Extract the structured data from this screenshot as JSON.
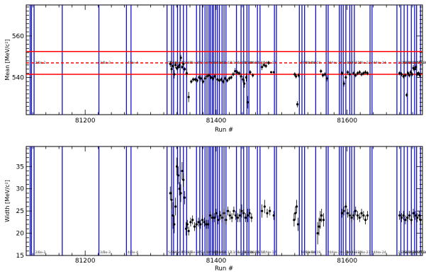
{
  "chart_data": [
    {
      "type": "scatter",
      "xlabel": "Run #",
      "ylabel_html": "Mean [MeV/c²]",
      "ylabel": "Mean [MeV/c2]",
      "xlim": [
        81110,
        81715
      ],
      "ylim": [
        522,
        575
      ],
      "xticks": [
        81200,
        81400,
        81600
      ],
      "yticks": [
        540,
        560
      ],
      "hlines_solid": [
        552.5,
        541.5
      ],
      "hline_dashed": 547.0,
      "hline_color": "#ff0000",
      "vline_color": "#1010c8",
      "point_color": "#000000",
      "errorbars": true,
      "points": [
        [
          81330,
          546.5,
          1.5
        ],
        [
          81332,
          544.0,
          2.0
        ],
        [
          81334,
          545.5,
          1.0
        ],
        [
          81336,
          541.5,
          2.0
        ],
        [
          81338,
          546.0,
          1.5
        ],
        [
          81340,
          544.5,
          1.0
        ],
        [
          81342,
          545.0,
          1.0
        ],
        [
          81344,
          546.0,
          1.5
        ],
        [
          81346,
          549.5,
          1.5
        ],
        [
          81348,
          545.0,
          1.0
        ],
        [
          81350,
          546.5,
          1.0
        ],
        [
          81352,
          544.0,
          1.0
        ],
        [
          81355,
          542.0,
          2.0
        ],
        [
          81358,
          530.5,
          2.5
        ],
        [
          81362,
          538.0,
          1.0
        ],
        [
          81365,
          539.0,
          1.0
        ],
        [
          81368,
          539.0,
          1.0
        ],
        [
          81371,
          538.5,
          1.0
        ],
        [
          81374,
          540.0,
          1.0
        ],
        [
          81377,
          539.5,
          1.5
        ],
        [
          81380,
          538.0,
          1.0
        ],
        [
          81383,
          539.5,
          1.0
        ],
        [
          81386,
          540.5,
          1.0
        ],
        [
          81389,
          541.0,
          1.0
        ],
        [
          81392,
          540.0,
          1.0
        ],
        [
          81395,
          539.5,
          1.0
        ],
        [
          81398,
          540.5,
          1.0
        ],
        [
          81402,
          539.0,
          1.0
        ],
        [
          81405,
          538.5,
          1.0
        ],
        [
          81408,
          539.0,
          1.0
        ],
        [
          81411,
          538.0,
          1.0
        ],
        [
          81414,
          539.5,
          1.0
        ],
        [
          81417,
          538.5,
          1.0
        ],
        [
          81420,
          539.5,
          1.0
        ],
        [
          81423,
          540.0,
          1.0
        ],
        [
          81426,
          541.5,
          1.0
        ],
        [
          81429,
          543.0,
          1.5
        ],
        [
          81432,
          542.5,
          1.0
        ],
        [
          81435,
          542.0,
          1.0
        ],
        [
          81438,
          540.5,
          1.5
        ],
        [
          81441,
          539.0,
          1.5
        ],
        [
          81443,
          537.0,
          2.0
        ],
        [
          81446,
          540.0,
          2.0
        ],
        [
          81448,
          528.0,
          3.0
        ],
        [
          81452,
          542.5,
          1.0
        ],
        [
          81456,
          541.0,
          1.0
        ],
        [
          81470,
          545.0,
          1.5
        ],
        [
          81473,
          546.0,
          1.0
        ],
        [
          81476,
          545.5,
          1.0
        ],
        [
          81480,
          547.0,
          1.0
        ],
        [
          81484,
          542.5,
          0.5
        ],
        [
          81488,
          542.5,
          0.5
        ],
        [
          81520,
          541.5,
          1.0
        ],
        [
          81522,
          540.5,
          1.0
        ],
        [
          81524,
          527.0,
          1.5
        ],
        [
          81526,
          541.0,
          1.0
        ],
        [
          81560,
          543.0,
          1.0
        ],
        [
          81563,
          541.0,
          1.0
        ],
        [
          81566,
          541.5,
          1.0
        ],
        [
          81569,
          539.5,
          1.5
        ],
        [
          81592,
          542.0,
          1.0
        ],
        [
          81595,
          537.0,
          1.5
        ],
        [
          81598,
          540.0,
          1.0
        ],
        [
          81601,
          542.5,
          1.0
        ],
        [
          81604,
          541.5,
          1.0
        ],
        [
          81610,
          542.0,
          1.0
        ],
        [
          81613,
          541.0,
          1.0
        ],
        [
          81616,
          542.0,
          1.0
        ],
        [
          81619,
          542.5,
          1.0
        ],
        [
          81622,
          541.5,
          1.0
        ],
        [
          81625,
          542.0,
          1.0
        ],
        [
          81628,
          542.5,
          1.0
        ],
        [
          81631,
          542.0,
          1.0
        ],
        [
          81680,
          542.0,
          1.0
        ],
        [
          81683,
          541.5,
          1.0
        ],
        [
          81686,
          540.5,
          1.0
        ],
        [
          81689,
          541.0,
          1.0
        ],
        [
          81691,
          531.5,
          1.0
        ],
        [
          81693,
          542.0,
          1.0
        ],
        [
          81695,
          541.0,
          1.0
        ],
        [
          81697,
          542.5,
          1.0
        ],
        [
          81699,
          541.5,
          1.0
        ],
        [
          81701,
          544.5,
          1.5
        ],
        [
          81703,
          544.0,
          1.0
        ],
        [
          81705,
          545.0,
          1.5
        ],
        [
          81707,
          541.5,
          1.0
        ],
        [
          81709,
          542.0,
          1.0
        ],
        [
          81711,
          541.0,
          1.0
        ]
      ]
    },
    {
      "type": "scatter",
      "xlabel": "Run #",
      "ylabel_html": "Width [MeV/c²]",
      "ylabel": "Width [MeV/c2]",
      "xlim": [
        81110,
        81715
      ],
      "ylim": [
        15,
        39.5
      ],
      "xticks": [
        81200,
        81400,
        81600
      ],
      "yticks": [
        15,
        20,
        25,
        30,
        35
      ],
      "vline_color": "#1010c8",
      "point_color": "#000000",
      "errorbars": true,
      "points": [
        [
          81330,
          29.0,
          1.5
        ],
        [
          81332,
          27.5,
          2.0
        ],
        [
          81334,
          24.0,
          3.0
        ],
        [
          81336,
          22.0,
          2.0
        ],
        [
          81338,
          26.0,
          2.0
        ],
        [
          81340,
          35.0,
          2.0
        ],
        [
          81342,
          33.0,
          2.0
        ],
        [
          81344,
          30.0,
          1.5
        ],
        [
          81346,
          29.0,
          2.0
        ],
        [
          81348,
          34.0,
          2.0
        ],
        [
          81350,
          32.0,
          1.5
        ],
        [
          81352,
          28.0,
          1.5
        ],
        [
          81354,
          21.0,
          1.5
        ],
        [
          81356,
          22.0,
          1.0
        ],
        [
          81358,
          20.5,
          1.0
        ],
        [
          81361,
          22.5,
          1.0
        ],
        [
          81364,
          23.0,
          1.0
        ],
        [
          81367,
          21.5,
          1.0
        ],
        [
          81370,
          22.0,
          1.0
        ],
        [
          81373,
          22.5,
          1.0
        ],
        [
          81376,
          22.0,
          1.0
        ],
        [
          81379,
          23.0,
          1.0
        ],
        [
          81382,
          22.5,
          1.0
        ],
        [
          81385,
          22.0,
          1.0
        ],
        [
          81388,
          22.0,
          1.0
        ],
        [
          81391,
          24.0,
          1.0
        ],
        [
          81394,
          23.5,
          1.0
        ],
        [
          81397,
          23.5,
          1.0
        ],
        [
          81400,
          24.5,
          1.0
        ],
        [
          81403,
          23.0,
          1.0
        ],
        [
          81406,
          24.0,
          1.0
        ],
        [
          81409,
          23.5,
          1.0
        ],
        [
          81412,
          24.5,
          1.0
        ],
        [
          81415,
          23.0,
          1.0
        ],
        [
          81418,
          25.0,
          1.0
        ],
        [
          81421,
          24.0,
          1.0
        ],
        [
          81424,
          23.5,
          1.0
        ],
        [
          81427,
          25.0,
          1.0
        ],
        [
          81430,
          24.0,
          1.0
        ],
        [
          81433,
          23.5,
          1.0
        ],
        [
          81436,
          24.0,
          1.5
        ],
        [
          81439,
          25.0,
          1.5
        ],
        [
          81442,
          24.5,
          1.0
        ],
        [
          81445,
          23.5,
          1.0
        ],
        [
          81448,
          24.0,
          1.5
        ],
        [
          81451,
          24.5,
          1.0
        ],
        [
          81454,
          23.5,
          1.0
        ],
        [
          81470,
          25.0,
          1.5
        ],
        [
          81474,
          26.0,
          1.5
        ],
        [
          81478,
          24.5,
          1.0
        ],
        [
          81482,
          25.0,
          1.0
        ],
        [
          81488,
          24.0,
          1.0
        ],
        [
          81519,
          23.0,
          1.5
        ],
        [
          81521,
          24.5,
          1.5
        ],
        [
          81523,
          26.0,
          1.5
        ],
        [
          81525,
          22.0,
          1.5
        ],
        [
          81555,
          20.0,
          2.5
        ],
        [
          81557,
          21.5,
          2.0
        ],
        [
          81559,
          23.0,
          2.0
        ],
        [
          81561,
          24.0,
          1.5
        ],
        [
          81564,
          23.0,
          1.5
        ],
        [
          81592,
          24.5,
          1.0
        ],
        [
          81595,
          25.0,
          1.0
        ],
        [
          81598,
          26.0,
          1.0
        ],
        [
          81601,
          24.5,
          1.0
        ],
        [
          81604,
          24.0,
          1.0
        ],
        [
          81607,
          23.5,
          1.0
        ],
        [
          81610,
          24.0,
          1.0
        ],
        [
          81613,
          25.0,
          1.0
        ],
        [
          81616,
          24.0,
          1.0
        ],
        [
          81619,
          23.5,
          1.0
        ],
        [
          81622,
          24.5,
          1.0
        ],
        [
          81625,
          24.0,
          1.0
        ],
        [
          81628,
          23.0,
          1.0
        ],
        [
          81631,
          24.0,
          1.0
        ],
        [
          81680,
          24.0,
          1.0
        ],
        [
          81683,
          23.5,
          1.0
        ],
        [
          81686,
          24.0,
          1.0
        ],
        [
          81689,
          23.0,
          1.0
        ],
        [
          81692,
          23.5,
          1.0
        ],
        [
          81695,
          24.0,
          1.0
        ],
        [
          81698,
          23.0,
          1.0
        ],
        [
          81701,
          24.5,
          1.0
        ],
        [
          81704,
          24.0,
          1.0
        ],
        [
          81707,
          23.5,
          1.0
        ],
        [
          81710,
          24.0,
          1.0
        ],
        [
          81712,
          23.0,
          1.0
        ]
      ]
    }
  ],
  "run_markers": [
    {
      "run": 81116,
      "label": ""
    },
    {
      "run": 81118,
      "label": ""
    },
    {
      "run": 81122,
      "label": "2/Be-2"
    },
    {
      "run": 81165,
      "label": ""
    },
    {
      "run": 81221,
      "label": "3/Be-3"
    },
    {
      "run": 81263,
      "label": "4/Be-4"
    },
    {
      "run": 81270,
      "label": ""
    },
    {
      "run": 81325,
      "label": "5/Be-5"
    },
    {
      "run": 81332,
      "label": "6/Be-6"
    },
    {
      "run": 81335,
      "label": ""
    },
    {
      "run": 81341,
      "label": ""
    },
    {
      "run": 81345,
      "label": "7/Be-7"
    },
    {
      "run": 81350,
      "label": ""
    },
    {
      "run": 81355,
      "label": "8/Be-8"
    },
    {
      "run": 81370,
      "label": "9/Be-9"
    },
    {
      "run": 81375,
      "label": ""
    },
    {
      "run": 81379,
      "label": ""
    },
    {
      "run": 81383,
      "label": "10/Be-10"
    },
    {
      "run": 81386,
      "label": ""
    },
    {
      "run": 81389,
      "label": ""
    },
    {
      "run": 81391,
      "label": "11/Be-11"
    },
    {
      "run": 81394,
      "label": ""
    },
    {
      "run": 81396,
      "label": ""
    },
    {
      "run": 81399,
      "label": "12/He-12"
    },
    {
      "run": 81402,
      "label": ""
    },
    {
      "run": 81405,
      "label": ""
    },
    {
      "run": 81409,
      "label": ""
    },
    {
      "run": 81412,
      "label": ""
    },
    {
      "run": 81415,
      "label": ""
    },
    {
      "run": 81431,
      "label": "14/He-14"
    },
    {
      "run": 81438,
      "label": ""
    },
    {
      "run": 81442,
      "label": "15/He-15"
    },
    {
      "run": 81447,
      "label": ""
    },
    {
      "run": 81450,
      "label": "16/He-16"
    },
    {
      "run": 81463,
      "label": ""
    },
    {
      "run": 81467,
      "label": "17/He-17"
    },
    {
      "run": 81489,
      "label": ""
    },
    {
      "run": 81492,
      "label": ""
    },
    {
      "run": 81527,
      "label": "18/He-18"
    },
    {
      "run": 81531,
      "label": ""
    },
    {
      "run": 81535,
      "label": "19/He-19"
    },
    {
      "run": 81552,
      "label": ""
    },
    {
      "run": 81568,
      "label": "20/He-20"
    },
    {
      "run": 81571,
      "label": ""
    },
    {
      "run": 81588,
      "label": "21/He-21"
    },
    {
      "run": 81591,
      "label": ""
    },
    {
      "run": 81594,
      "label": ""
    },
    {
      "run": 81598,
      "label": "22/He-22"
    },
    {
      "run": 81604,
      "label": ""
    },
    {
      "run": 81607,
      "label": ""
    },
    {
      "run": 81611,
      "label": "23/He-23"
    },
    {
      "run": 81635,
      "label": "24/He-24"
    },
    {
      "run": 81638,
      "label": ""
    },
    {
      "run": 81676,
      "label": "25/He-25"
    },
    {
      "run": 81682,
      "label": "26/He-26"
    },
    {
      "run": 81687,
      "label": "27/He-27"
    },
    {
      "run": 81692,
      "label": ""
    },
    {
      "run": 81698,
      "label": "28/He-28"
    },
    {
      "run": 81703,
      "label": ""
    },
    {
      "run": 81706,
      "label": "29/He-29"
    },
    {
      "run": 81712,
      "label": ""
    }
  ],
  "overlapping_labels_shown_as": "13/He-13"
}
